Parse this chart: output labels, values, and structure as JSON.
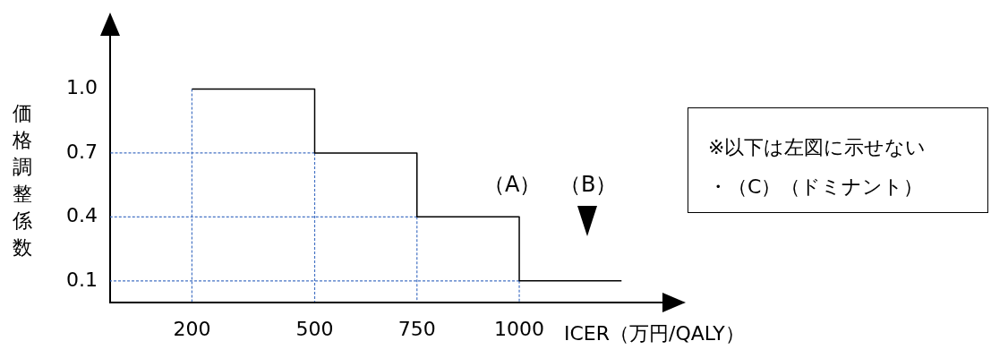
{
  "chart_data": {
    "type": "step",
    "xlabel": "ICER（万円/QALY）",
    "ylabel": "価格調整係数",
    "xlim": [
      0,
      1350
    ],
    "xticks": [
      200,
      500,
      750,
      1000
    ],
    "ylim": [
      0,
      1.25
    ],
    "yticks": [
      0.1,
      0.4,
      0.7,
      {
        "value": 1.0,
        "label": "1.0"
      }
    ],
    "grid": false,
    "legend": false,
    "marker": "none",
    "series": [
      {
        "color": "#000000",
        "x": [
          200,
          500,
          750,
          1000,
          1250
        ],
        "values": [
          1.0,
          0.7,
          0.4,
          0.1,
          0.1
        ]
      },
      {
        "type": "line",
        "line_style": "dashed",
        "color": "#4472c4",
        "x": [
          200,
          200
        ],
        "values": [
          1.0,
          0
        ]
      },
      {
        "type": "line",
        "line_style": "dashed",
        "color": "#4472c4",
        "x": [
          500,
          500
        ],
        "values": [
          0.7,
          0
        ]
      },
      {
        "type": "line",
        "line_style": "dashed",
        "color": "#4472c4",
        "x": [
          750,
          750
        ],
        "values": [
          0.4,
          0
        ]
      },
      {
        "type": "line",
        "line_style": "dashed",
        "color": "#4472c4",
        "x": [
          1000,
          1000
        ],
        "values": [
          0.1,
          0
        ]
      },
      {
        "type": "line",
        "line_style": "dashed",
        "color": "#4472c4",
        "x": [
          500,
          0
        ],
        "values": [
          0.7,
          0.7
        ]
      },
      {
        "type": "line",
        "line_style": "dashed",
        "color": "#4472c4",
        "x": [
          750,
          0
        ],
        "values": [
          0.4,
          0.4
        ]
      },
      {
        "type": "line",
        "line_style": "dashed",
        "color": "#4472c4",
        "x": [
          1000,
          0
        ],
        "values": [
          0.1,
          0.1
        ]
      }
    ],
    "annotations": [
      "（A）",
      "（B）",
      "※以下は左図に示せない",
      "・（C）（ドミナント）"
    ]
  }
}
